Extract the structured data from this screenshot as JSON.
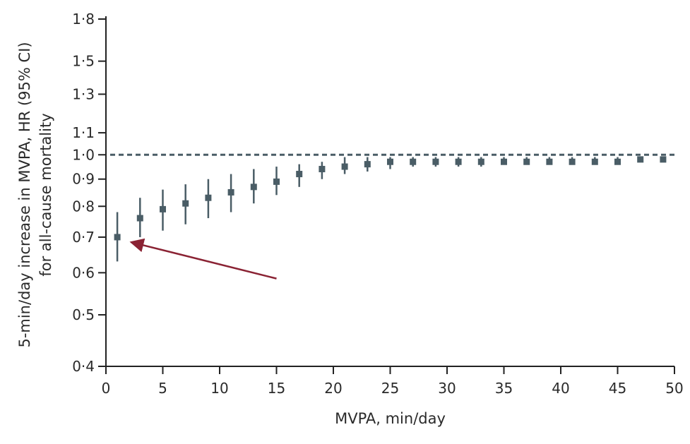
{
  "chart_data": {
    "type": "scatter",
    "subtype": "point-estimate-with-confidence-intervals",
    "xlabel": "MVPA, min/day",
    "ylabel_line1": "5-min/day increase in MVPA, HR (95% CI)",
    "ylabel_line2": "for all-cause mortality",
    "xlim": [
      0,
      50
    ],
    "ylim": [
      0.4,
      1.8
    ],
    "y_scale": "log",
    "x_ticks": [
      0,
      5,
      10,
      15,
      20,
      25,
      30,
      35,
      40,
      45,
      50
    ],
    "x_tick_labels": [
      "0",
      "5",
      "10",
      "15",
      "20",
      "25",
      "30",
      "35",
      "40",
      "45",
      "50"
    ],
    "y_ticks": [
      0.4,
      0.5,
      0.6,
      0.7,
      0.8,
      0.9,
      1.0,
      1.1,
      1.3,
      1.5,
      1.8
    ],
    "y_tick_labels": [
      "0·4",
      "0·5",
      "0·6",
      "0·7",
      "0·8",
      "0·9",
      "1·0",
      "1·1",
      "1·3",
      "1·5",
      "1·8"
    ],
    "reference_line": {
      "y": 1.0,
      "style": "dashed"
    },
    "series": [
      {
        "name": "HR",
        "x": [
          1,
          3,
          5,
          7,
          9,
          11,
          13,
          15,
          17,
          19,
          21,
          23,
          25,
          27,
          29,
          31,
          33,
          35,
          37,
          39,
          41,
          43,
          45,
          47,
          49
        ],
        "y": [
          0.7,
          0.76,
          0.79,
          0.81,
          0.83,
          0.85,
          0.87,
          0.89,
          0.92,
          0.94,
          0.95,
          0.96,
          0.97,
          0.97,
          0.97,
          0.97,
          0.97,
          0.97,
          0.97,
          0.97,
          0.97,
          0.97,
          0.97,
          0.98,
          0.98
        ],
        "lower": [
          0.63,
          0.7,
          0.72,
          0.74,
          0.76,
          0.78,
          0.81,
          0.84,
          0.87,
          0.9,
          0.92,
          0.93,
          0.94,
          0.95,
          0.95,
          0.95,
          0.95,
          0.96,
          0.96,
          0.96,
          0.96,
          0.96,
          0.97,
          0.97,
          0.97
        ],
        "upper": [
          0.78,
          0.83,
          0.86,
          0.88,
          0.9,
          0.92,
          0.94,
          0.95,
          0.96,
          0.97,
          0.99,
          0.99,
          0.99,
          0.99,
          0.99,
          0.99,
          0.99,
          0.99,
          0.99,
          0.99,
          0.99,
          0.99,
          0.99,
          0.99,
          0.99
        ]
      }
    ],
    "annotation": {
      "type": "arrow",
      "points_to": {
        "x": 2.2,
        "y": 0.685
      },
      "from": {
        "x": 15,
        "y": 0.585
      }
    },
    "colors": {
      "marker": "#4a5d66",
      "arrow": "#8a2233",
      "axis": "#222222",
      "reference": "#4a5d66"
    }
  }
}
